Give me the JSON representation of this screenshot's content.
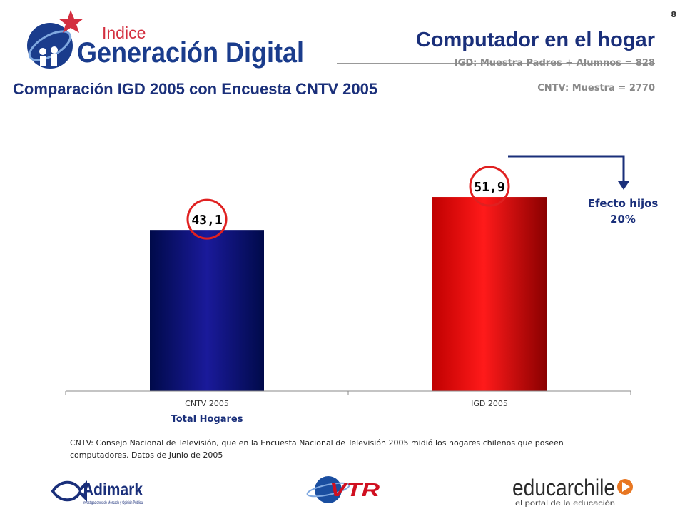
{
  "page_number": "8",
  "header": {
    "title": "Computador en el hogar",
    "subtitle": "Comparación IGD 2005 con Encuesta CNTV 2005",
    "sample_igd": "IGD: Muestra Padres + Alumnos = 828",
    "sample_cntv": "CNTV: Muestra = 2770"
  },
  "logos": {
    "igd_small": "Indice",
    "igd_main": "Generación Digital",
    "adimark": "Adimark",
    "adimark_tagline": "Investigaciones de Mercado y Opinión Pública",
    "vtr": "VTR",
    "educarchile": "educarchile",
    "educarchile_tagline": "el portal de la educación"
  },
  "annotation": {
    "line1": "Efecto hijos",
    "line2": "20%"
  },
  "note": "CNTV: Consejo Nacional de Televisión, que en la Encuesta Nacional de Televisión 2005 midió los hogares chilenos que poseen computadores. Datos de Junio de 2005",
  "colors": {
    "title_blue": "#1a2f7a",
    "bar_cntv": "#0a0f6e",
    "bar_igd": "#e00000",
    "highlight_circle": "#e02020",
    "star_red": "#d32f3f"
  },
  "chart_data": {
    "type": "bar",
    "categories": [
      "CNTV 2005",
      "IGD 2005"
    ],
    "values": [
      43.1,
      51.9
    ],
    "value_labels": [
      "43,1",
      "51,9"
    ],
    "xlabel": "Total Hogares",
    "ylabel": "",
    "ylim": [
      0,
      60
    ],
    "grid": false,
    "legend": "none"
  }
}
